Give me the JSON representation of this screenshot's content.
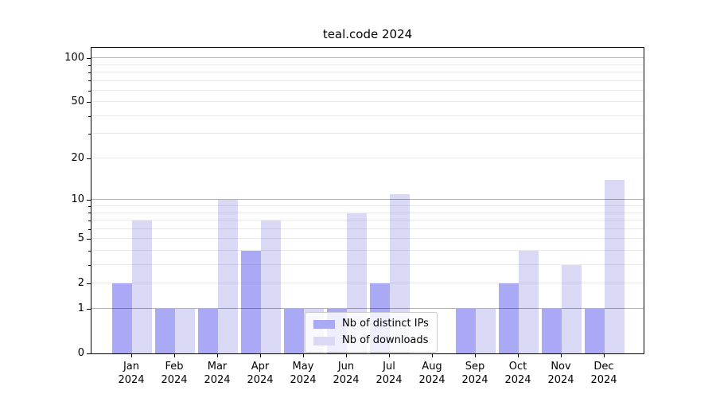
{
  "colors": {
    "background": "#ffffff",
    "spine": "#000000",
    "text": "#000000",
    "grid_major": "rgba(0,0,0,0.30)",
    "grid_minor": "rgba(0,0,0,0.08)",
    "legend_border": "#cccccc",
    "legend_background": "rgba(255,255,255,0.8)"
  },
  "chart_data": {
    "type": "bar",
    "title": "teal.code 2024",
    "categories": [
      "Jan",
      "Feb",
      "Mar",
      "Apr",
      "May",
      "Jun",
      "Jul",
      "Aug",
      "Sep",
      "Oct",
      "Nov",
      "Dec"
    ],
    "year_label": "2024",
    "series": [
      {
        "name": "Nb of distinct IPs",
        "color": "#a9a9f6",
        "values": [
          2,
          1,
          1,
          4,
          1,
          1,
          2,
          0,
          1,
          2,
          1,
          1
        ]
      },
      {
        "name": "Nb of downloads",
        "color": "#d9d9f6",
        "values": [
          7,
          1,
          10,
          7,
          1,
          8,
          11,
          0,
          1,
          4,
          3,
          14
        ]
      }
    ],
    "xlabel": "",
    "ylabel": "",
    "yscale": "log1p",
    "ylim": [
      0,
      118
    ],
    "yticks": [
      0,
      1,
      2,
      5,
      10,
      20,
      50,
      100
    ],
    "grid_major": [
      1,
      10,
      100
    ],
    "grid_minor": [
      2,
      3,
      4,
      5,
      6,
      7,
      8,
      9,
      20,
      30,
      40,
      50,
      60,
      70,
      80,
      90
    ],
    "grid": "on",
    "legend_position": "lower center"
  }
}
